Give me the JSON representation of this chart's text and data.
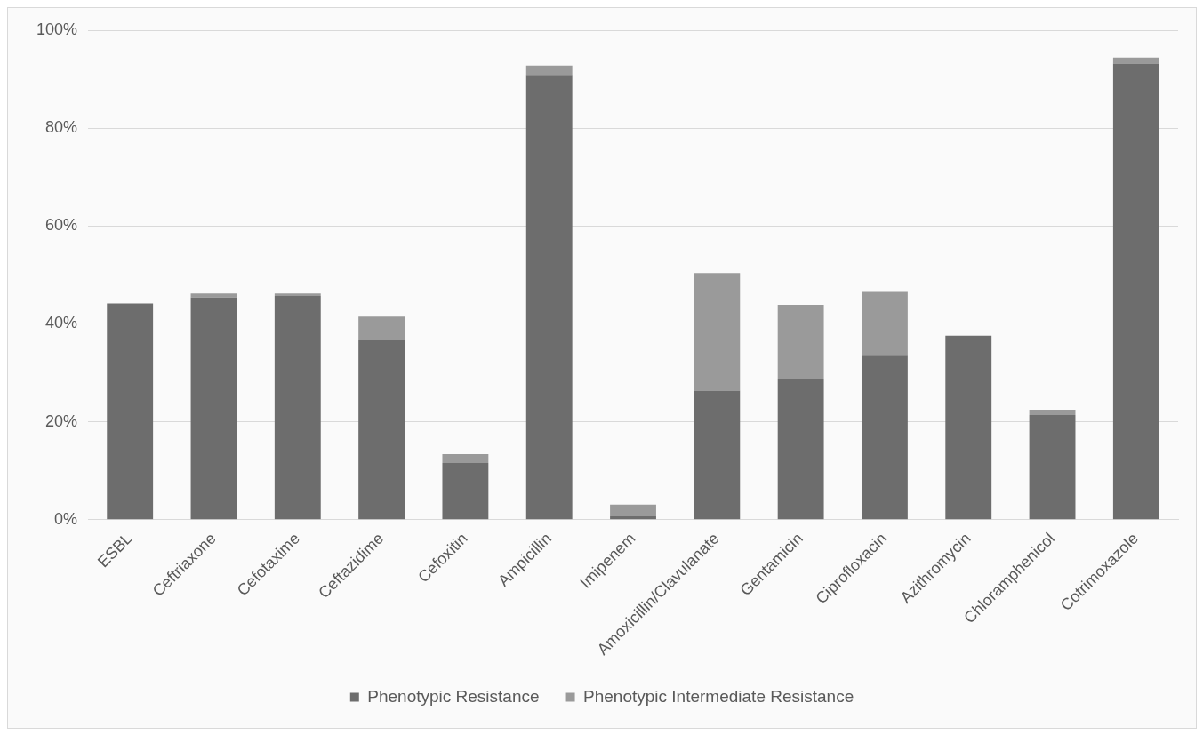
{
  "chart_data": {
    "type": "bar",
    "stacked": true,
    "categories": [
      "ESBL",
      "Ceftriaxone",
      "Cefotaxime",
      "Ceftazidime",
      "Cefoxitin",
      "Ampicillin",
      "Imipenem",
      "Amoxicillin/Clavulanate",
      "Gentamicin",
      "Ciprofloxacin",
      "Azithromycin",
      "Chloramphenicol",
      "Cotrimoxazole"
    ],
    "series": [
      {
        "name": "Phenotypic Resistance",
        "color": "#6d6d6d",
        "values": [
          44.2,
          45.4,
          45.7,
          36.8,
          11.6,
          90.9,
          0.7,
          26.4,
          28.7,
          33.7,
          37.6,
          21.4,
          93.2
        ]
      },
      {
        "name": "Phenotypic Intermediate Resistance",
        "color": "#9a9a9a",
        "values": [
          0,
          0.8,
          0.5,
          4.7,
          1.8,
          1.9,
          2.4,
          24.0,
          15.2,
          13.0,
          0,
          1.1,
          1.2
        ]
      }
    ],
    "ylim": [
      0,
      100
    ],
    "yticks": [
      {
        "value": 0,
        "label": "0%"
      },
      {
        "value": 20,
        "label": "20%"
      },
      {
        "value": 40,
        "label": "40%"
      },
      {
        "value": 60,
        "label": "60%"
      },
      {
        "value": 80,
        "label": "80%"
      },
      {
        "value": 100,
        "label": "100%"
      }
    ],
    "grid": "y",
    "legend": "bottom"
  }
}
